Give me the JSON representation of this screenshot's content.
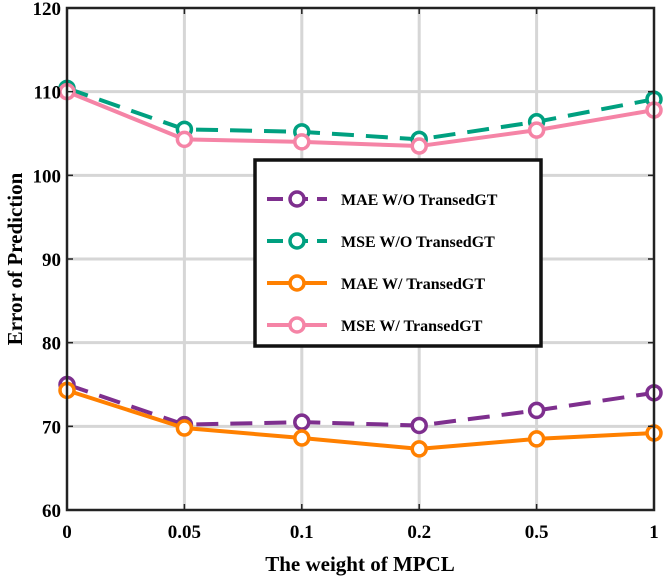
{
  "chart_data": {
    "type": "line",
    "title": "",
    "xlabel": "The weight of MPCL",
    "ylabel": "Error of Prediction",
    "categories": [
      "0",
      "0.05",
      "0.1",
      "0.2",
      "0.5",
      "1"
    ],
    "ylim": [
      60,
      120
    ],
    "yticks": [
      60,
      70,
      80,
      90,
      100,
      110,
      120
    ],
    "y_tick_labels": [
      "60",
      "70",
      "80",
      "90",
      "100",
      "110",
      "120"
    ],
    "grid": true,
    "legend_position": "center",
    "series": [
      {
        "name": "MAE W/O TransedGT",
        "color": "#7E2F8E",
        "dash": true,
        "values": [
          75.0,
          70.2,
          70.5,
          70.1,
          71.9,
          74.0
        ]
      },
      {
        "name": "MSE W/O TransedGT",
        "color": "#00A080",
        "dash": true,
        "values": [
          110.4,
          105.5,
          105.2,
          104.3,
          106.4,
          109.1
        ]
      },
      {
        "name": "MAE W/ TransedGT",
        "color": "#FF8000",
        "dash": false,
        "values": [
          74.3,
          69.8,
          68.6,
          67.3,
          68.5,
          69.2
        ]
      },
      {
        "name": "MSE W/ TransedGT",
        "color": "#F584A6",
        "dash": false,
        "values": [
          110.0,
          104.3,
          104.0,
          103.5,
          105.4,
          107.8
        ]
      }
    ]
  }
}
